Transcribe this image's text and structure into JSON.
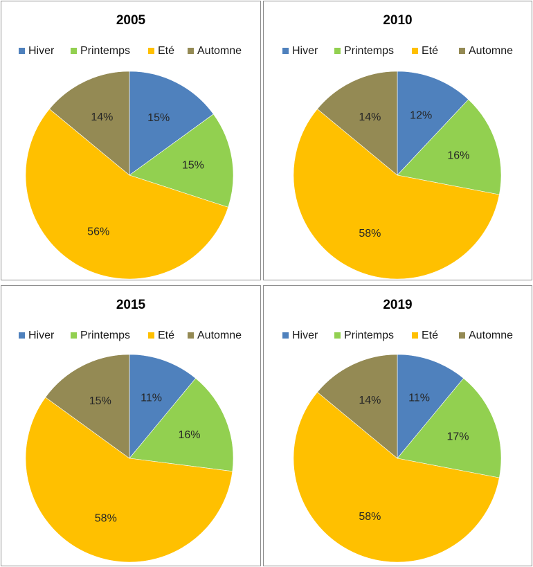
{
  "chart_data": [
    {
      "type": "pie",
      "title": "2005",
      "categories": [
        "Hiver",
        "Printemps",
        "Eté",
        "Automne"
      ],
      "values": [
        15,
        15,
        56,
        14
      ],
      "labels": [
        "15%",
        "15%",
        "56%",
        "14%"
      ],
      "colors": [
        "#4F81BD",
        "#92D050",
        "#FFC000",
        "#948A54"
      ],
      "legend": "top"
    },
    {
      "type": "pie",
      "title": "2010",
      "categories": [
        "Hiver",
        "Printemps",
        "Eté",
        "Automne"
      ],
      "values": [
        12,
        16,
        58,
        14
      ],
      "labels": [
        "12%",
        "16%",
        "58%",
        "14%"
      ],
      "colors": [
        "#4F81BD",
        "#92D050",
        "#FFC000",
        "#948A54"
      ],
      "legend": "top"
    },
    {
      "type": "pie",
      "title": "2015",
      "categories": [
        "Hiver",
        "Printemps",
        "Eté",
        "Automne"
      ],
      "values": [
        11,
        16,
        58,
        15
      ],
      "labels": [
        "11%",
        "16%",
        "58%",
        "15%"
      ],
      "colors": [
        "#4F81BD",
        "#92D050",
        "#FFC000",
        "#948A54"
      ],
      "legend": "top"
    },
    {
      "type": "pie",
      "title": "2019",
      "categories": [
        "Hiver",
        "Printemps",
        "Eté",
        "Automne"
      ],
      "values": [
        11,
        17,
        58,
        14
      ],
      "labels": [
        "11%",
        "17%",
        "58%",
        "14%"
      ],
      "colors": [
        "#4F81BD",
        "#92D050",
        "#FFC000",
        "#948A54"
      ],
      "legend": "top"
    }
  ]
}
